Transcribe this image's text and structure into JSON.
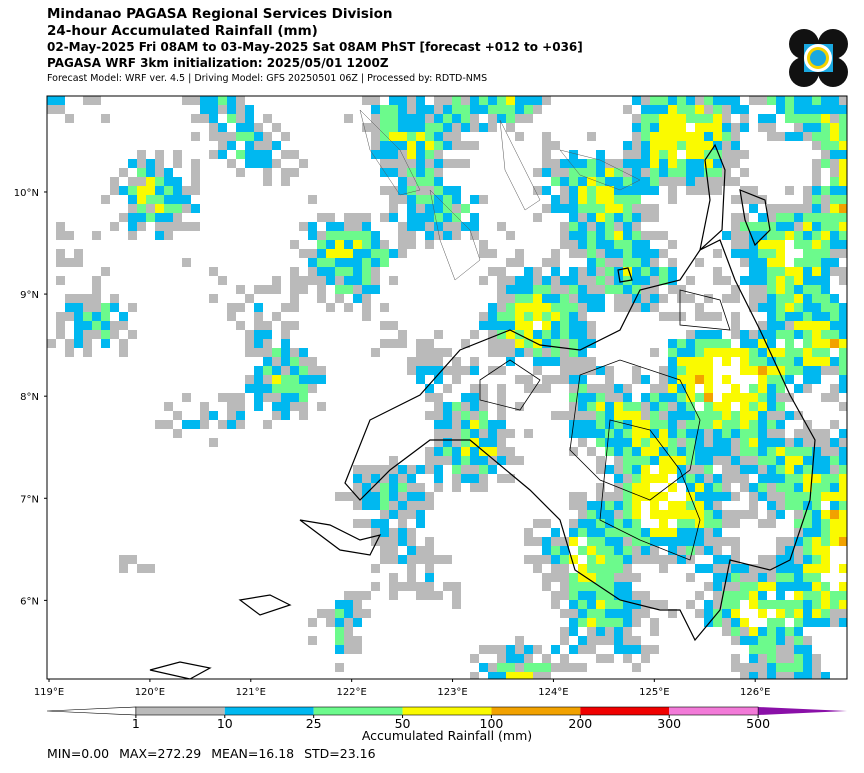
{
  "header": {
    "lines": [
      "Mindanao PAGASA Regional Services Division",
      "24-hour Accumulated Rainfall (mm)",
      "02-May-2025 Fri 08AM to 03-May-2025 Sat 08AM PhST [forecast +012 to +036]",
      "PAGASA WRF 3km initialization: 2025/05/01 1200Z",
      "Forecast Model: WRF ver. 4.5 | Driving Model: GFS 20250501 06Z | Processed by: RDTD-NMS"
    ]
  },
  "map": {
    "xlim": [
      118.98,
      126.91
    ],
    "ylim": [
      5.23,
      10.94
    ],
    "xticks": [
      {
        "value": 119,
        "label": "119°E"
      },
      {
        "value": 120,
        "label": "120°E"
      },
      {
        "value": 121,
        "label": "121°E"
      },
      {
        "value": 122,
        "label": "122°E"
      },
      {
        "value": 123,
        "label": "123°E"
      },
      {
        "value": 124,
        "label": "124°E"
      },
      {
        "value": 125,
        "label": "125°E"
      },
      {
        "value": 126,
        "label": "126°E"
      }
    ],
    "yticks": [
      {
        "value": 6,
        "label": "6°N"
      },
      {
        "value": 7,
        "label": "7°N"
      },
      {
        "value": 8,
        "label": "8°N"
      },
      {
        "value": 9,
        "label": "9°N"
      },
      {
        "value": 10,
        "label": "10°N"
      }
    ]
  },
  "colorbar": {
    "label": "Accumulated Rainfall (mm)",
    "boundaries": [
      1,
      10,
      25,
      50,
      100,
      200,
      300,
      500
    ],
    "colors": [
      "#bababa",
      "#00b8f0",
      "#6cfa8c",
      "#fafa00",
      "#f2a200",
      "#f00000",
      "#f27ad8"
    ],
    "under_color": "#ffffff",
    "over_color": "#8a10a8"
  },
  "stats": [
    "MIN=0.00",
    "MAX=272.29",
    "MEAN=16.18",
    "STD=23.16"
  ]
}
